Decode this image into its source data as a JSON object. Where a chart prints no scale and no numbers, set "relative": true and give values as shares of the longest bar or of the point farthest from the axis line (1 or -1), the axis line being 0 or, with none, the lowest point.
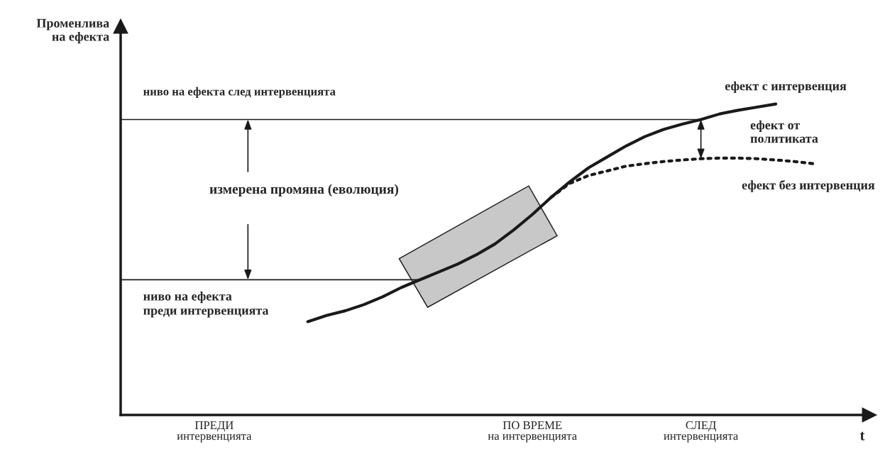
{
  "chart_data": {
    "type": "line",
    "relative": true,
    "ylabel": "Променлива\nна ефекта",
    "xlabel": "t",
    "categories": [
      null,
      null,
      null,
      null,
      null,
      "ПРЕДИ\nинтервенцията",
      null,
      null,
      null,
      null,
      null,
      null,
      null,
      null,
      null,
      null,
      null,
      null,
      null,
      null,
      null,
      null,
      "ПО ВРЕМЕ\nна интервенцията",
      null,
      null,
      null,
      null,
      null,
      null,
      null,
      null,
      "СЛЕД\nинтервенцията",
      null,
      null,
      null,
      null,
      null,
      null,
      null,
      null,
      null
    ],
    "series": [
      {
        "name": "ефект с интервенция",
        "color": "#1a1a1a",
        "line_style": "solid",
        "values": [
          null,
          null,
          null,
          null,
          null,
          null,
          null,
          null,
          null,
          null,
          0.3,
          0.32,
          0.335,
          0.355,
          0.38,
          0.41,
          0.435,
          0.46,
          0.485,
          0.515,
          0.55,
          0.595,
          0.645,
          0.7,
          0.75,
          0.795,
          0.83,
          0.865,
          0.895,
          0.918,
          0.935,
          0.95,
          0.968,
          0.98,
          0.99,
          1.0,
          null,
          null,
          null,
          null,
          null
        ]
      },
      {
        "name": "ефект без интервенция",
        "color": "#1a1a1a",
        "line_style": "dotted",
        "values": [
          null,
          null,
          null,
          null,
          null,
          null,
          null,
          null,
          null,
          null,
          null,
          null,
          null,
          null,
          null,
          null,
          null,
          null,
          null,
          null,
          null,
          null,
          null,
          0.7,
          0.745,
          0.77,
          0.785,
          0.8,
          0.808,
          0.815,
          0.82,
          0.824,
          0.826,
          0.826,
          0.824,
          0.82,
          0.815,
          0.808,
          null,
          null,
          null
        ]
      }
    ],
    "ref_lines": [
      {
        "axis": "y",
        "value": 0.95,
        "label": "ниво на ефекта след интервенцията"
      },
      {
        "axis": "y",
        "value": 0.435,
        "label": "ниво на ефекта\nпреди интервенцията"
      }
    ],
    "annotations": [
      "измерена промяна (еволюция)",
      "ефект от\nполитиката"
    ],
    "grid": false
  }
}
